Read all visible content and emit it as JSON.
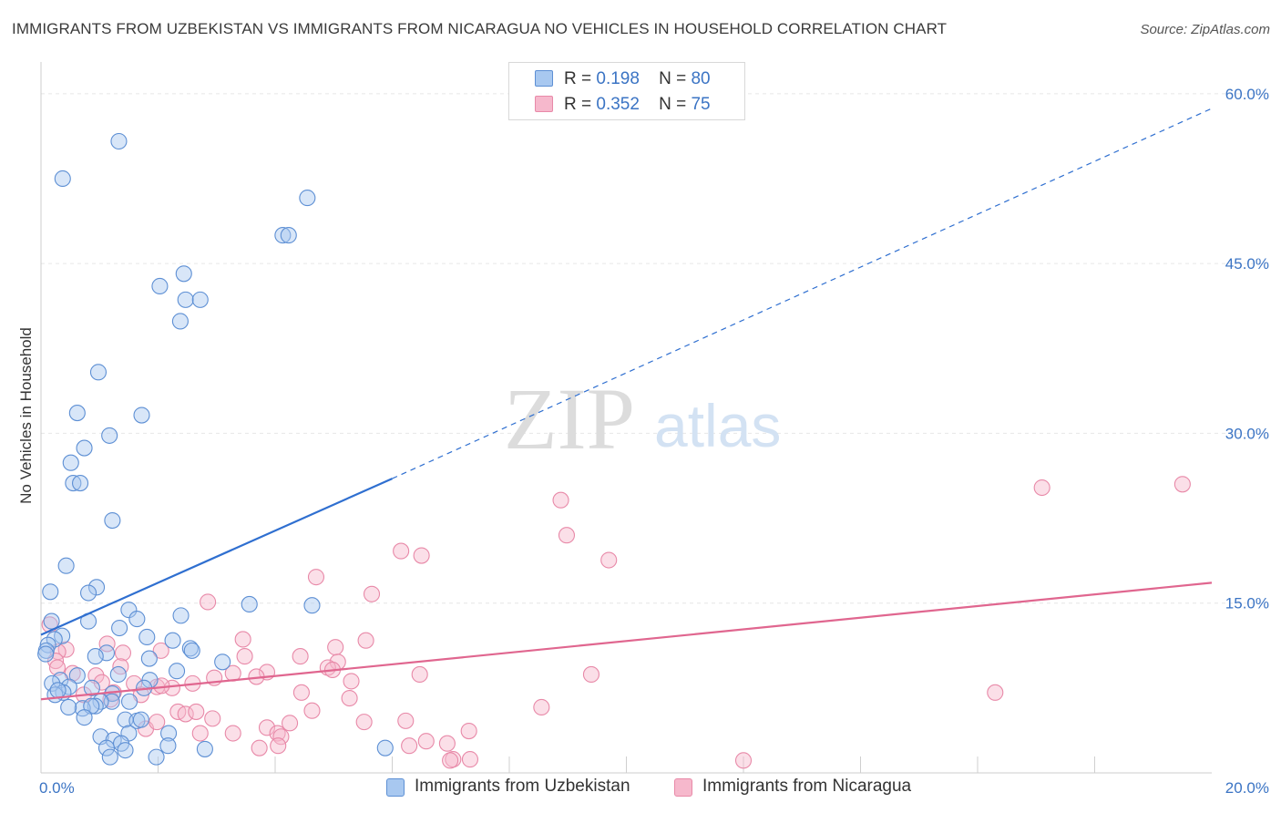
{
  "title": "IMMIGRANTS FROM UZBEKISTAN VS IMMIGRANTS FROM NICARAGUA NO VEHICLES IN HOUSEHOLD CORRELATION CHART",
  "source": "Source: ZipAtlas.com",
  "watermark": {
    "zip": "ZIP",
    "atlas": "atlas"
  },
  "legend": {
    "r_label": "R =",
    "n_label": "N =",
    "uzbekistan": {
      "r": "0.198",
      "n": "80"
    },
    "nicaragua": {
      "r": "0.352",
      "n": "75"
    }
  },
  "colors": {
    "uzbekistan_fill": "#a8c8f0",
    "uzbekistan_stroke": "#5d8fd4",
    "uzbekistan_line": "#2f6fd0",
    "nicaragua_fill": "#f6b8cc",
    "nicaragua_stroke": "#e889a8",
    "nicaragua_line": "#e0668f",
    "tick": "#3b74c4",
    "grid": "#e6e6e6"
  },
  "chart_data": {
    "type": "scatter",
    "title": "IMMIGRANTS FROM UZBEKISTAN VS IMMIGRANTS FROM NICARAGUA NO VEHICLES IN HOUSEHOLD CORRELATION CHART",
    "xlabel": "",
    "ylabel": "No Vehicles in Household",
    "xlim": [
      0,
      20
    ],
    "ylim": [
      0,
      62
    ],
    "x_tick_labels": [
      "0.0%",
      "20.0%"
    ],
    "y_ticks": [
      15,
      30,
      45,
      60
    ],
    "y_tick_labels": [
      "15.0%",
      "30.0%",
      "45.0%",
      "60.0%"
    ],
    "grid": true,
    "legend_position": "top-center",
    "series": [
      {
        "name": "Immigrants from Uzbekistan",
        "r": 0.198,
        "n": 80,
        "trend": {
          "x0": 0.0,
          "y0": 12.2,
          "x_solid_end": 6.0,
          "y_solid_end": 26.0,
          "x1": 20.0,
          "y1": 58.7
        },
        "points": [
          [
            1.33,
            55.8
          ],
          [
            0.37,
            52.5
          ],
          [
            4.55,
            50.8
          ],
          [
            4.13,
            47.5
          ],
          [
            4.23,
            47.5
          ],
          [
            2.44,
            44.1
          ],
          [
            2.03,
            43.0
          ],
          [
            2.47,
            41.8
          ],
          [
            2.72,
            41.8
          ],
          [
            2.38,
            39.9
          ],
          [
            0.98,
            35.4
          ],
          [
            0.62,
            31.8
          ],
          [
            1.72,
            31.6
          ],
          [
            1.17,
            29.8
          ],
          [
            0.74,
            28.7
          ],
          [
            0.51,
            27.4
          ],
          [
            0.55,
            25.6
          ],
          [
            0.67,
            25.6
          ],
          [
            1.22,
            22.3
          ],
          [
            0.43,
            18.3
          ],
          [
            0.95,
            16.4
          ],
          [
            0.81,
            15.9
          ],
          [
            0.16,
            16.0
          ],
          [
            3.56,
            14.9
          ],
          [
            4.63,
            14.8
          ],
          [
            1.5,
            14.4
          ],
          [
            2.39,
            13.9
          ],
          [
            1.64,
            13.6
          ],
          [
            0.18,
            13.4
          ],
          [
            0.81,
            13.4
          ],
          [
            1.34,
            12.8
          ],
          [
            0.36,
            12.1
          ],
          [
            0.23,
            11.8
          ],
          [
            1.81,
            12.0
          ],
          [
            2.25,
            11.7
          ],
          [
            0.12,
            11.3
          ],
          [
            0.09,
            10.8
          ],
          [
            0.08,
            10.5
          ],
          [
            2.55,
            11.0
          ],
          [
            2.58,
            10.8
          ],
          [
            1.12,
            10.6
          ],
          [
            0.93,
            10.3
          ],
          [
            1.85,
            10.1
          ],
          [
            3.1,
            9.8
          ],
          [
            2.32,
            9.0
          ],
          [
            0.62,
            8.6
          ],
          [
            1.32,
            8.7
          ],
          [
            0.33,
            8.2
          ],
          [
            1.86,
            8.2
          ],
          [
            0.19,
            7.9
          ],
          [
            0.48,
            7.6
          ],
          [
            0.87,
            7.5
          ],
          [
            1.76,
            7.5
          ],
          [
            1.22,
            7.0
          ],
          [
            0.38,
            7.1
          ],
          [
            0.24,
            6.9
          ],
          [
            0.29,
            7.3
          ],
          [
            1.51,
            6.3
          ],
          [
            1.21,
            6.3
          ],
          [
            1.02,
            6.3
          ],
          [
            0.93,
            5.9
          ],
          [
            0.71,
            5.7
          ],
          [
            0.86,
            5.9
          ],
          [
            0.47,
            5.8
          ],
          [
            0.74,
            4.9
          ],
          [
            1.44,
            4.7
          ],
          [
            1.64,
            4.6
          ],
          [
            1.71,
            4.7
          ],
          [
            2.18,
            3.5
          ],
          [
            1.5,
            3.5
          ],
          [
            1.02,
            3.2
          ],
          [
            1.24,
            2.9
          ],
          [
            1.37,
            2.6
          ],
          [
            2.17,
            2.4
          ],
          [
            1.12,
            2.2
          ],
          [
            1.44,
            2.0
          ],
          [
            2.8,
            2.1
          ],
          [
            5.88,
            2.2
          ],
          [
            1.18,
            1.4
          ],
          [
            1.97,
            1.4
          ]
        ]
      },
      {
        "name": "Immigrants from Nicaragua",
        "r": 0.352,
        "n": 75,
        "trend": {
          "x0": 0.0,
          "y0": 6.5,
          "x1": 20.0,
          "y1": 16.8
        },
        "points": [
          [
            17.1,
            25.2
          ],
          [
            19.5,
            25.5
          ],
          [
            8.88,
            24.1
          ],
          [
            8.98,
            21.0
          ],
          [
            6.15,
            19.6
          ],
          [
            6.5,
            19.2
          ],
          [
            9.7,
            18.8
          ],
          [
            4.7,
            17.3
          ],
          [
            5.65,
            15.8
          ],
          [
            2.85,
            15.1
          ],
          [
            0.15,
            13.1
          ],
          [
            3.45,
            11.8
          ],
          [
            5.55,
            11.7
          ],
          [
            5.03,
            11.1
          ],
          [
            1.13,
            11.4
          ],
          [
            0.43,
            10.9
          ],
          [
            0.29,
            10.7
          ],
          [
            2.05,
            10.8
          ],
          [
            0.25,
            9.9
          ],
          [
            3.48,
            10.3
          ],
          [
            4.43,
            10.3
          ],
          [
            5.07,
            9.8
          ],
          [
            1.4,
            10.6
          ],
          [
            4.9,
            9.3
          ],
          [
            1.36,
            9.4
          ],
          [
            0.28,
            9.3
          ],
          [
            4.98,
            9.1
          ],
          [
            3.86,
            8.9
          ],
          [
            0.54,
            8.8
          ],
          [
            0.94,
            8.6
          ],
          [
            3.28,
            8.8
          ],
          [
            6.47,
            8.7
          ],
          [
            9.4,
            8.7
          ],
          [
            2.96,
            8.4
          ],
          [
            3.68,
            8.5
          ],
          [
            5.3,
            8.1
          ],
          [
            1.04,
            8.0
          ],
          [
            2.59,
            7.9
          ],
          [
            1.59,
            7.9
          ],
          [
            1.98,
            7.6
          ],
          [
            2.24,
            7.5
          ],
          [
            2.06,
            7.7
          ],
          [
            4.45,
            7.1
          ],
          [
            1.24,
            7.1
          ],
          [
            1.71,
            6.9
          ],
          [
            16.3,
            7.1
          ],
          [
            5.27,
            6.6
          ],
          [
            1.19,
            6.5
          ],
          [
            0.73,
            6.9
          ],
          [
            8.55,
            5.8
          ],
          [
            4.63,
            5.5
          ],
          [
            2.34,
            5.4
          ],
          [
            2.47,
            5.2
          ],
          [
            2.65,
            5.4
          ],
          [
            2.93,
            4.8
          ],
          [
            5.52,
            4.5
          ],
          [
            4.25,
            4.4
          ],
          [
            6.23,
            4.6
          ],
          [
            3.86,
            4.0
          ],
          [
            1.79,
            3.9
          ],
          [
            7.31,
            3.7
          ],
          [
            4.04,
            3.5
          ],
          [
            3.28,
            3.5
          ],
          [
            2.72,
            3.5
          ],
          [
            4.1,
            3.2
          ],
          [
            6.58,
            2.8
          ],
          [
            6.94,
            2.6
          ],
          [
            4.05,
            2.4
          ],
          [
            6.29,
            2.4
          ],
          [
            3.73,
            2.2
          ],
          [
            12.0,
            1.1
          ],
          [
            7.04,
            1.2
          ],
          [
            6.99,
            1.1
          ],
          [
            7.33,
            1.2
          ],
          [
            1.98,
            4.5
          ]
        ]
      }
    ]
  }
}
